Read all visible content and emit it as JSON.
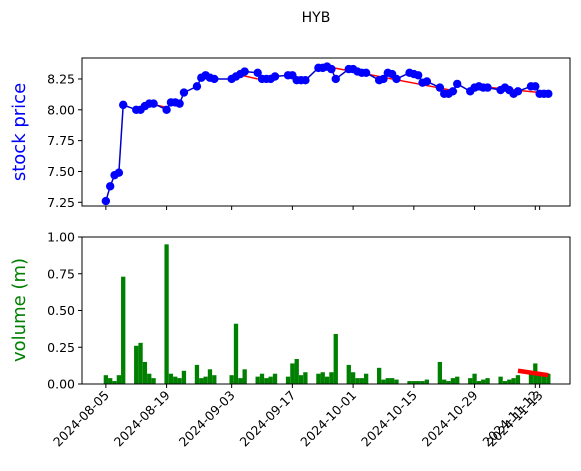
{
  "chart_data": {
    "title": "HYB",
    "x_dates": [
      "2024-08-05",
      "2024-08-06",
      "2024-08-07",
      "2024-08-08",
      "2024-08-09",
      "2024-08-12",
      "2024-08-13",
      "2024-08-14",
      "2024-08-15",
      "2024-08-16",
      "2024-08-19",
      "2024-08-20",
      "2024-08-21",
      "2024-08-22",
      "2024-08-23",
      "2024-08-26",
      "2024-08-27",
      "2024-08-28",
      "2024-08-29",
      "2024-08-30",
      "2024-09-03",
      "2024-09-04",
      "2024-09-05",
      "2024-09-06",
      "2024-09-09",
      "2024-09-10",
      "2024-09-11",
      "2024-09-12",
      "2024-09-13",
      "2024-09-16",
      "2024-09-17",
      "2024-09-18",
      "2024-09-19",
      "2024-09-20",
      "2024-09-23",
      "2024-09-24",
      "2024-09-25",
      "2024-09-26",
      "2024-09-27",
      "2024-09-30",
      "2024-10-01",
      "2024-10-02",
      "2024-10-03",
      "2024-10-04",
      "2024-10-07",
      "2024-10-08",
      "2024-10-09",
      "2024-10-10",
      "2024-10-11",
      "2024-10-14",
      "2024-10-15",
      "2024-10-16",
      "2024-10-17",
      "2024-10-18",
      "2024-10-21",
      "2024-10-22",
      "2024-10-23",
      "2024-10-24",
      "2024-10-25",
      "2024-10-28",
      "2024-10-29",
      "2024-10-30",
      "2024-10-31",
      "2024-11-01",
      "2024-11-04",
      "2024-11-05",
      "2024-11-06",
      "2024-11-07",
      "2024-11-08",
      "2024-11-11",
      "2024-11-12",
      "2024-11-13",
      "2024-11-14",
      "2024-11-15"
    ],
    "price_panel": {
      "type": "line",
      "ylabel": "stock price",
      "ylim": [
        7.22,
        8.42
      ],
      "yticks": [
        7.25,
        7.5,
        7.75,
        8.0,
        8.25
      ],
      "ytick_labels": [
        "7.25",
        "7.50",
        "7.75",
        "8.00",
        "8.25"
      ],
      "line_color": "#0000cc",
      "marker_color": "#0000ff",
      "trend_color": "#ff0000",
      "values": [
        7.26,
        7.38,
        7.47,
        7.49,
        8.04,
        8.0,
        8.0,
        8.03,
        8.05,
        8.05,
        8.0,
        8.06,
        8.06,
        8.05,
        8.14,
        8.19,
        8.26,
        8.28,
        8.26,
        8.25,
        8.25,
        8.27,
        8.29,
        8.31,
        8.3,
        8.25,
        8.25,
        8.25,
        8.27,
        8.28,
        8.28,
        8.24,
        8.24,
        8.24,
        8.34,
        8.34,
        8.35,
        8.33,
        8.25,
        8.33,
        8.33,
        8.31,
        8.3,
        8.3,
        8.24,
        8.25,
        8.3,
        8.29,
        8.25,
        8.3,
        8.29,
        8.28,
        8.22,
        8.23,
        8.18,
        8.13,
        8.13,
        8.15,
        8.21,
        8.15,
        8.18,
        8.19,
        8.18,
        8.18,
        8.16,
        8.18,
        8.16,
        8.13,
        8.15,
        8.19,
        8.19,
        8.13,
        8.13,
        8.13
      ],
      "trend_segments": [
        [
          [
            8,
            8.05
          ],
          [
            10,
            8.02
          ]
        ],
        [
          [
            21,
            8.29
          ],
          [
            24,
            8.25
          ]
        ],
        [
          [
            36,
            8.35
          ],
          [
            58,
            8.15
          ]
        ],
        [
          [
            61,
            8.19
          ],
          [
            71,
            8.14
          ]
        ]
      ]
    },
    "volume_panel": {
      "type": "bar",
      "ylabel": "volume (m)",
      "ylim": [
        0,
        1.0
      ],
      "yticks": [
        0,
        0.25,
        0.5,
        0.75,
        1.0
      ],
      "ytick_labels": [
        "0.00",
        "0.25",
        "0.50",
        "0.75",
        "1.00"
      ],
      "bar_color": "#008000",
      "trend_color": "#ff0000",
      "values": [
        0.06,
        0.04,
        0.02,
        0.06,
        0.73,
        0.26,
        0.28,
        0.15,
        0.07,
        0.04,
        0.95,
        0.07,
        0.05,
        0.04,
        0.09,
        0.13,
        0.04,
        0.05,
        0.1,
        0.06,
        0.06,
        0.41,
        0.04,
        0.1,
        0.05,
        0.07,
        0.04,
        0.05,
        0.07,
        0.05,
        0.14,
        0.17,
        0.06,
        0.08,
        0.07,
        0.08,
        0.05,
        0.08,
        0.34,
        0.13,
        0.08,
        0.04,
        0.04,
        0.07,
        0.11,
        0.03,
        0.04,
        0.04,
        0.03,
        0.02,
        0.02,
        0.02,
        0.02,
        0.03,
        0.15,
        0.03,
        0.02,
        0.04,
        0.05,
        0.04,
        0.07,
        0.02,
        0.03,
        0.04,
        0.05,
        0.02,
        0.03,
        0.04,
        0.06,
        0.08,
        0.14,
        0.07,
        0.06,
        0.07
      ],
      "trend_segments": [
        [
          [
            68,
            0.09
          ],
          [
            73,
            0.06
          ]
        ]
      ]
    },
    "xtick_labels": [
      "2024-08-05",
      "2024-08-19",
      "2024-09-03",
      "2024-09-17",
      "2024-10-01",
      "2024-10-15",
      "2024-10-29",
      "2024-11-12",
      "2024-11-13"
    ],
    "xtick_dates": [
      "2024-08-05",
      "2024-08-19",
      "2024-09-03",
      "2024-09-17",
      "2024-10-01",
      "2024-10-15",
      "2024-10-29",
      "2024-11-12",
      "2024-11-13"
    ]
  }
}
